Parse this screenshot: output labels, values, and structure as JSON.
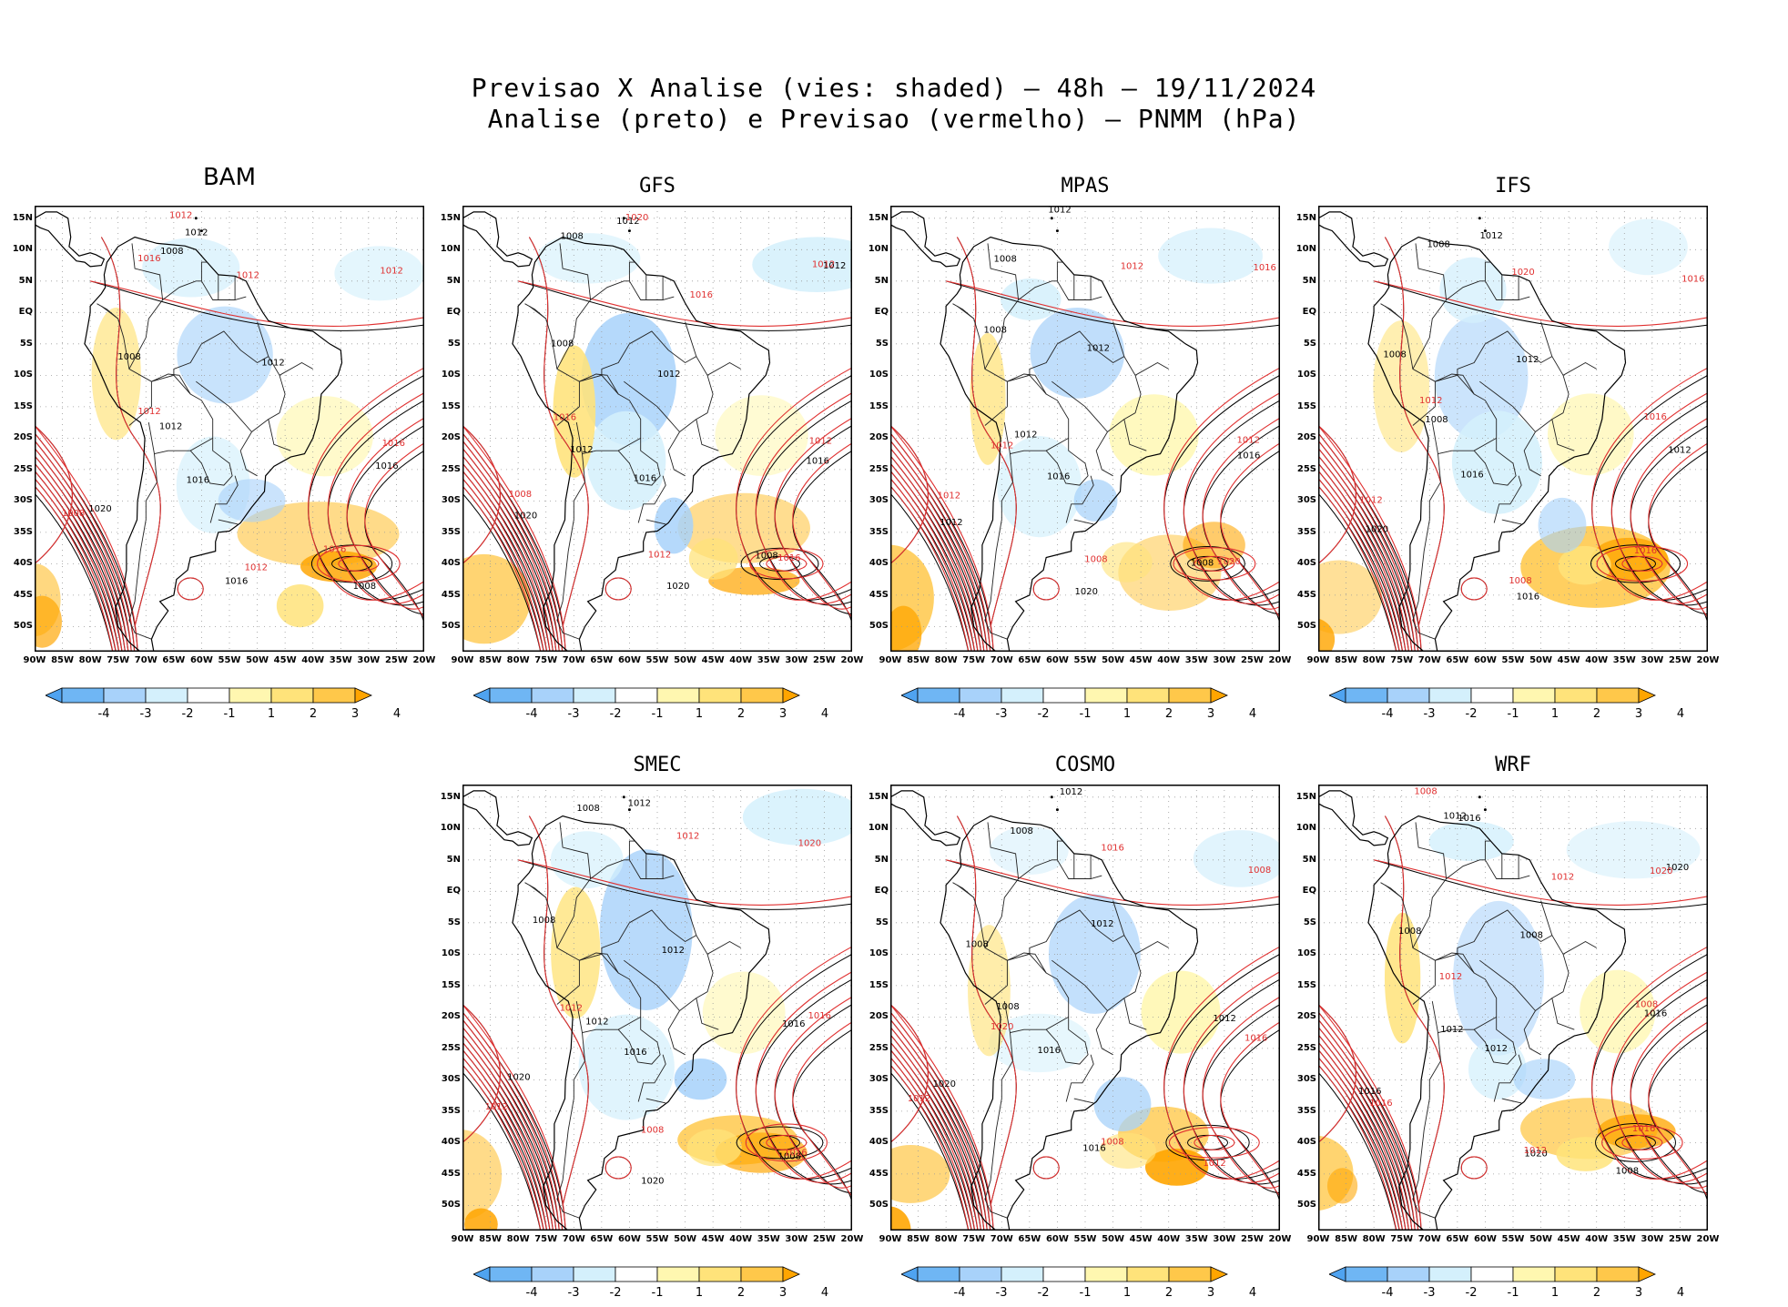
{
  "figure": {
    "title_line1": "Previsao X Analise (vies: shaded) – 48h – 19/11/2024",
    "title_line2": "Analise (preto) e Previsao (vermelho) – PNMM (hPa)"
  },
  "lat_labels": [
    "15N",
    "10N",
    "5N",
    "EQ",
    "5S",
    "10S",
    "15S",
    "20S",
    "25S",
    "30S",
    "35S",
    "40S",
    "45S",
    "50S"
  ],
  "lon_labels": [
    "90W",
    "85W",
    "80W",
    "75W",
    "70W",
    "65W",
    "60W",
    "55W",
    "50W",
    "45W",
    "40W",
    "35W",
    "30W",
    "25W",
    "20W"
  ],
  "colorbar": {
    "tick_labels": [
      "-4",
      "-3",
      "-2",
      "-1",
      "1",
      "2",
      "3",
      "4"
    ],
    "colors": [
      "#4fa3f0",
      "#6fb6f4",
      "#a8d2fa",
      "#d4f0fc",
      "#ffffff",
      "#fff7b0",
      "#ffe37a",
      "#ffc84a",
      "#ffa500"
    ]
  },
  "colors": {
    "analysis_contour": "#000000",
    "forecast_contour": "#e03030",
    "coast": "#000000"
  },
  "panels": [
    {
      "name": "BAM",
      "labels_black": [
        "1012",
        "1008",
        "1008",
        "1012",
        "1016",
        "1020",
        "1016",
        "1016",
        "1012",
        "1008"
      ],
      "labels_red": [
        "1008",
        "1012",
        "1016",
        "1012",
        "1016",
        "1012",
        "1012",
        "1012",
        "1016"
      ]
    },
    {
      "name": "GFS",
      "labels_black": [
        "1012",
        "1008",
        "1008",
        "1012",
        "1016",
        "1020",
        "1020",
        "1016",
        "1012",
        "1008",
        "1012"
      ],
      "labels_red": [
        "1008",
        "1012",
        "1012",
        "1016",
        "1016",
        "1012",
        "1016",
        "1020"
      ]
    },
    {
      "name": "MPAS",
      "labels_black": [
        "1012",
        "1008",
        "1008",
        "1012",
        "1016",
        "1012",
        "1020",
        "1016",
        "1012",
        "1008"
      ],
      "labels_red": [
        "1012",
        "1008",
        "1012",
        "1012",
        "1020",
        "1016",
        "1012"
      ]
    },
    {
      "name": "IFS",
      "labels_black": [
        "1012",
        "1008",
        "1008",
        "1012",
        "1016",
        "1020",
        "1016",
        "1012",
        "1008"
      ],
      "labels_red": [
        "1012",
        "1008",
        "1016",
        "1012",
        "1016",
        "1016",
        "1020"
      ]
    },
    {
      "name": "SMEC",
      "labels_black": [
        "1012",
        "1008",
        "1008",
        "1012",
        "1016",
        "1020",
        "1020",
        "1016",
        "1012",
        "1008"
      ],
      "labels_red": [
        "1012",
        "1008",
        "1016",
        "1012",
        "1016",
        "1020",
        "1012"
      ]
    },
    {
      "name": "COSMO",
      "labels_black": [
        "1012",
        "1008",
        "1008",
        "1012",
        "1016",
        "1020",
        "1016",
        "1012",
        "1008"
      ],
      "labels_red": [
        "1012",
        "1008",
        "1016",
        "1020",
        "1012",
        "1008",
        "1016"
      ]
    },
    {
      "name": "WRF",
      "labels_black": [
        "1016",
        "1012",
        "1008",
        "1008",
        "1012",
        "1016",
        "1020",
        "1016",
        "1012",
        "1008",
        "1020"
      ],
      "labels_red": [
        "1016",
        "1012",
        "1008",
        "1012",
        "1016",
        "1020",
        "1012",
        "1016",
        "1008"
      ]
    }
  ]
}
